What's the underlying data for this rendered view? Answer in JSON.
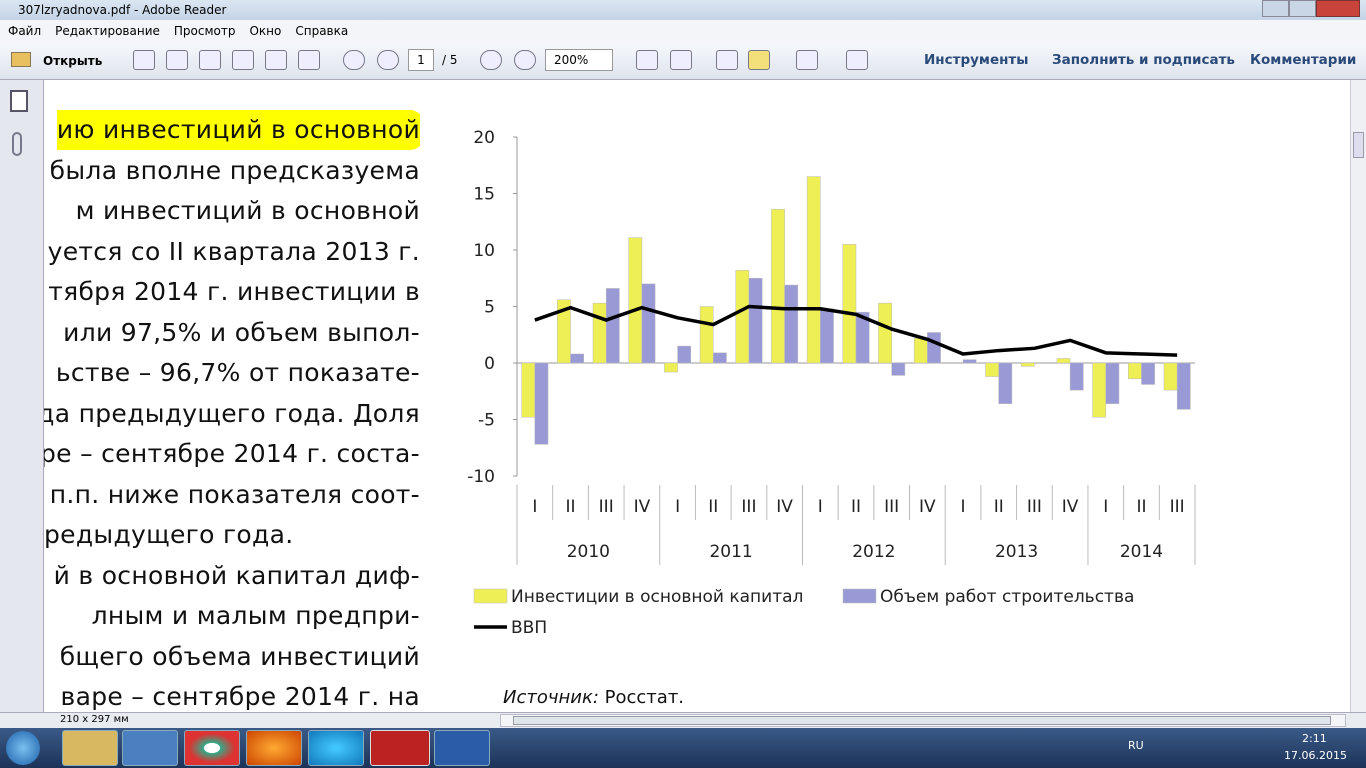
{
  "window": {
    "title": "307lzryadnova.pdf - Adobe Reader"
  },
  "menu": [
    "Файл",
    "Редактирование",
    "Просмотр",
    "Окно",
    "Справка"
  ],
  "toolbar": {
    "open": "Открыть",
    "page": "1",
    "pages": "/ 5",
    "zoom": "200%",
    "tools": "Инструменты",
    "sign": "Заполнить и подписать",
    "comments": "Комментарии"
  },
  "document": {
    "lines": [
      "ию инвестиций в основной",
      "была вполне предсказуема",
      "м инвестиций в основной",
      "уется со II квартала 2013 г.",
      "тября 2014 г. инвестиции в",
      "или 97,5% и объем выпол-",
      "ьстве – 96,7% от показате-",
      "да предыдущего года. Доля",
      "ре – сентябре 2014 г. соста-",
      "п.п. ниже показателя соот-",
      "редыдущего года.",
      "й в основной капитал диф-",
      "лным и малым предпри-",
      "бщего объема инвестиций",
      "варе – сентябре 2014 г. на"
    ],
    "source_label": "Источник:",
    "source": "Росстат."
  },
  "status": {
    "size": "210 x 297 мм"
  },
  "taskbar": {
    "lang": "RU",
    "time": "2:11",
    "date": "17.06.2015"
  },
  "chart_data": {
    "type": "bar",
    "categories": [
      "I",
      "II",
      "III",
      "IV",
      "I",
      "II",
      "III",
      "IV",
      "I",
      "II",
      "III",
      "IV",
      "I",
      "II",
      "III",
      "IV",
      "I",
      "II",
      "III"
    ],
    "groups": [
      "2010",
      "2011",
      "2012",
      "2013",
      "2014"
    ],
    "series": [
      {
        "name": "Инвестиции в основной капитал",
        "type": "bar",
        "color": "#eeee55",
        "values": [
          -4.8,
          5.6,
          5.3,
          11.1,
          -0.8,
          5.0,
          8.2,
          13.6,
          16.5,
          10.5,
          5.3,
          2.2,
          0,
          -1.2,
          -0.3,
          0.4,
          -4.8,
          -1.4,
          -2.4
        ]
      },
      {
        "name": "Объем работ строительства",
        "type": "bar",
        "color": "#9999d6",
        "values": [
          -7.2,
          0.8,
          6.6,
          7.0,
          1.5,
          0.9,
          7.5,
          6.9,
          4.8,
          4.5,
          -1.1,
          2.7,
          0.3,
          -3.6,
          0,
          -2.4,
          -3.6,
          -1.9,
          -4.1
        ]
      },
      {
        "name": "ВВП",
        "type": "line",
        "color": "#000000",
        "values": [
          3.8,
          4.9,
          3.8,
          4.9,
          4.0,
          3.4,
          5.0,
          4.8,
          4.8,
          4.3,
          3.0,
          2.1,
          0.8,
          1.1,
          1.3,
          2.0,
          0.9,
          0.8,
          0.7
        ]
      }
    ],
    "ylim": [
      -10,
      20
    ],
    "yticks": [
      -10,
      -5,
      0,
      5,
      10,
      15,
      20
    ],
    "grid": false
  }
}
